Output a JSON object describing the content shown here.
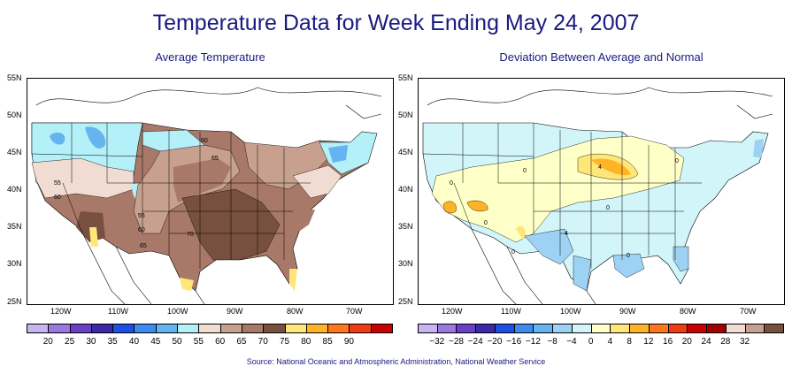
{
  "title": "Temperature Data for Week Ending May 24, 2007",
  "source": "Source:  National Oceanic and Atmospheric Administration, National Weather Service",
  "maps": [
    {
      "subtitle": "Average Temperature",
      "y_ticks": [
        "55N",
        "50N",
        "45N",
        "40N",
        "35N",
        "30N",
        "25N"
      ],
      "x_ticks": [
        "120W",
        "110W",
        "100W",
        "90W",
        "80W",
        "70W"
      ],
      "contour_labels": [
        "60",
        "65",
        "55",
        "60",
        "55",
        "60",
        "65",
        "70"
      ],
      "legend": {
        "labels": [
          "20",
          "25",
          "30",
          "35",
          "40",
          "45",
          "50",
          "55",
          "60",
          "65",
          "70",
          "75",
          "80",
          "85",
          "90"
        ],
        "colors": [
          "#c8b4f0",
          "#9a78e0",
          "#6a40c8",
          "#3c28a8",
          "#1e50e6",
          "#3c8cf0",
          "#64b4f0",
          "#b4f0f8",
          "#f0dcd2",
          "#c8a090",
          "#a87868",
          "#785040",
          "#ffe678",
          "#ffb428",
          "#ff781e",
          "#f03c14",
          "#c80000"
        ]
      }
    },
    {
      "subtitle": "Deviation Between Average and Normal",
      "y_ticks": [
        "55N",
        "50N",
        "45N",
        "40N",
        "35N",
        "30N",
        "25N"
      ],
      "x_ticks": [
        "120W",
        "110W",
        "100W",
        "90W",
        "80W",
        "70W"
      ],
      "contour_labels": [
        "0",
        "0",
        "4",
        "0",
        "0",
        "0",
        "4",
        "0",
        "0"
      ],
      "legend": {
        "labels": [
          "−32",
          "−28",
          "−24",
          "−20",
          "−16",
          "−12",
          "−8",
          "−4",
          "0",
          "4",
          "8",
          "12",
          "16",
          "20",
          "24",
          "28",
          "32"
        ],
        "colors": [
          "#c8b4f0",
          "#9a78e0",
          "#6a40c8",
          "#3c28a8",
          "#1e50e6",
          "#3c8cf0",
          "#64b4f0",
          "#9ed2f5",
          "#d2f5fa",
          "#ffffc8",
          "#ffe678",
          "#ffb428",
          "#ff781e",
          "#f03c14",
          "#c80000",
          "#a00000",
          "#f0dcd2",
          "#c8a090",
          "#785040"
        ]
      }
    }
  ]
}
